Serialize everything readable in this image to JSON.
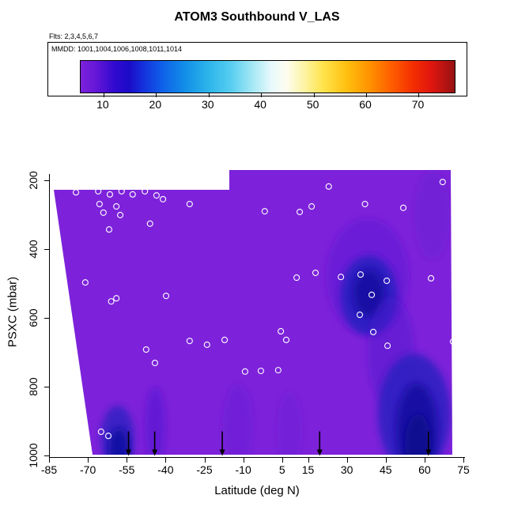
{
  "title": "ATOM3 Southbound V_LAS",
  "flights_note": "Flts: 2,3,4,5,6,7",
  "legend": {
    "mmdd_label": "MMDD: 1001,1004,1006,1008,1011,1014",
    "tick_values": [
      10,
      20,
      30,
      40,
      50,
      60,
      70
    ],
    "gradient_stops": [
      {
        "at": 0.0,
        "color": "#7d22da"
      },
      {
        "at": 0.04,
        "color": "#6517d8"
      },
      {
        "at": 0.09,
        "color": "#3209cf"
      },
      {
        "at": 0.13,
        "color": "#1b0bc8"
      },
      {
        "at": 0.17,
        "color": "#1433dd"
      },
      {
        "at": 0.22,
        "color": "#0f62e8"
      },
      {
        "at": 0.28,
        "color": "#128fe8"
      },
      {
        "at": 0.34,
        "color": "#2cb4ea"
      },
      {
        "at": 0.4,
        "color": "#55cdf0"
      },
      {
        "at": 0.46,
        "color": "#a5e8f5"
      },
      {
        "at": 0.51,
        "color": "#e8f9fc"
      },
      {
        "at": 0.55,
        "color": "#fdfdf0"
      },
      {
        "at": 0.6,
        "color": "#fdf3a0"
      },
      {
        "at": 0.65,
        "color": "#ffe34a"
      },
      {
        "at": 0.71,
        "color": "#ffc010"
      },
      {
        "at": 0.77,
        "color": "#ff9400"
      },
      {
        "at": 0.83,
        "color": "#fe5f00"
      },
      {
        "at": 0.89,
        "color": "#f42d00"
      },
      {
        "at": 0.94,
        "color": "#dd1510"
      },
      {
        "at": 1.0,
        "color": "#971212"
      }
    ]
  },
  "axes": {
    "x_label": "Latitude (deg N)",
    "y_label": "PSXC (mbar)",
    "x_tick_values": [
      -85,
      -70,
      -55,
      -40,
      -25,
      -10,
      5,
      15,
      30,
      45,
      60,
      75
    ],
    "y_tick_values": [
      200,
      400,
      600,
      800,
      1000
    ]
  },
  "chart_data": {
    "type": "heatmap",
    "title": "ATOM3 Southbound V_LAS",
    "xlabel": "Latitude (deg N)",
    "ylabel": "PSXC (mbar)",
    "xlim": [
      -85,
      75
    ],
    "ylim": [
      1020,
      150
    ],
    "y_reversed": true,
    "base_color": "#7d22da",
    "colorbar": {
      "range": [
        5.5,
        77
      ],
      "ticks": [
        10,
        20,
        30,
        40,
        50,
        60,
        70
      ]
    },
    "low_value_blobs": [
      {
        "name": "halo-mid-right",
        "lat": 38,
        "p": 480,
        "rlat": 16,
        "rp": 170,
        "color": "#5a14d2",
        "opacity": 0.5
      },
      {
        "name": "blob-mid-right-outer",
        "lat": 38.5,
        "p": 535,
        "rlat": 11,
        "rp": 115,
        "color": "#2a1ec0",
        "opacity": 0.9
      },
      {
        "name": "blob-mid-right-core",
        "lat": 38.5,
        "p": 528,
        "rlat": 6,
        "rp": 68,
        "color": "#140fa2",
        "opacity": 0.95
      },
      {
        "name": "connector-right",
        "lat": 47,
        "p": 700,
        "rlat": 9,
        "rp": 160,
        "color": "#4a14cc",
        "opacity": 0.45
      },
      {
        "name": "swath-lower-right-outer",
        "lat": 56,
        "p": 880,
        "rlat": 14,
        "rp": 175,
        "color": "#2a1ec0",
        "opacity": 0.85
      },
      {
        "name": "swath-lower-right-core",
        "lat": 57,
        "p": 925,
        "rlat": 8,
        "rp": 135,
        "color": "#140fa2",
        "opacity": 0.95
      },
      {
        "name": "swath-lower-right-darkest",
        "lat": 57.5,
        "p": 965,
        "rlat": 5,
        "rp": 85,
        "color": "#0d0a8e",
        "opacity": 0.9
      },
      {
        "name": "patch-lower-left-outer",
        "lat": -58.5,
        "p": 950,
        "rlat": 6.5,
        "rp": 95,
        "color": "#2a1ec0",
        "opacity": 0.8
      },
      {
        "name": "patch-lower-left-core",
        "lat": -58,
        "p": 980,
        "rlat": 4,
        "rp": 60,
        "color": "#120da2",
        "opacity": 0.9
      },
      {
        "name": "band-lower-left",
        "lat": -44,
        "p": 915,
        "rlat": 4,
        "rp": 115,
        "color": "#5215d0",
        "opacity": 0.6
      },
      {
        "name": "streak-lower-mid-1",
        "lat": -12,
        "p": 915,
        "rlat": 6,
        "rp": 125,
        "color": "#6018d4",
        "opacity": 0.4
      },
      {
        "name": "streak-lower-mid-2",
        "lat": 8,
        "p": 925,
        "rlat": 5,
        "rp": 110,
        "color": "#6018d4",
        "opacity": 0.35
      },
      {
        "name": "tinge-upper-right",
        "lat": 63,
        "p": 300,
        "rlat": 7,
        "rp": 130,
        "color": "#5a15cf",
        "opacity": 0.3
      }
    ],
    "markers": [
      [
        -74.6,
        235
      ],
      [
        -66.0,
        232
      ],
      [
        -61.5,
        241
      ],
      [
        -57.0,
        232
      ],
      [
        -52.7,
        241
      ],
      [
        -48.0,
        232
      ],
      [
        -43.5,
        244
      ],
      [
        -41.0,
        255
      ],
      [
        -65.5,
        269
      ],
      [
        -64.0,
        294
      ],
      [
        -59.0,
        276
      ],
      [
        -57.5,
        301
      ],
      [
        -61.8,
        343
      ],
      [
        -46.0,
        326
      ],
      [
        -30.7,
        269
      ],
      [
        -1.7,
        290
      ],
      [
        11.8,
        292
      ],
      [
        16.4,
        276
      ],
      [
        37.0,
        269
      ],
      [
        51.8,
        280
      ],
      [
        67.0,
        205
      ],
      [
        23.0,
        218
      ],
      [
        -71.0,
        497
      ],
      [
        -61.0,
        552
      ],
      [
        -59.0,
        543
      ],
      [
        -39.8,
        536
      ],
      [
        10.6,
        483
      ],
      [
        17.9,
        469
      ],
      [
        27.7,
        481
      ],
      [
        35.3,
        474
      ],
      [
        39.6,
        533
      ],
      [
        45.4,
        492
      ],
      [
        62.5,
        485
      ],
      [
        -30.7,
        667
      ],
      [
        -24.0,
        678
      ],
      [
        -17.2,
        664
      ],
      [
        4.5,
        639
      ],
      [
        6.6,
        664
      ],
      [
        35.0,
        591
      ],
      [
        40.2,
        641
      ],
      [
        45.7,
        681
      ],
      [
        -47.5,
        692
      ],
      [
        -44.1,
        731
      ],
      [
        -9.3,
        756
      ],
      [
        -3.2,
        754
      ],
      [
        3.5,
        752
      ],
      [
        -64.9,
        931
      ],
      [
        -62.1,
        943
      ],
      [
        71.0,
        669
      ]
    ],
    "arrow_lats": [
      -54.3,
      -44.2,
      -18.1,
      19.5,
      61.5
    ]
  }
}
